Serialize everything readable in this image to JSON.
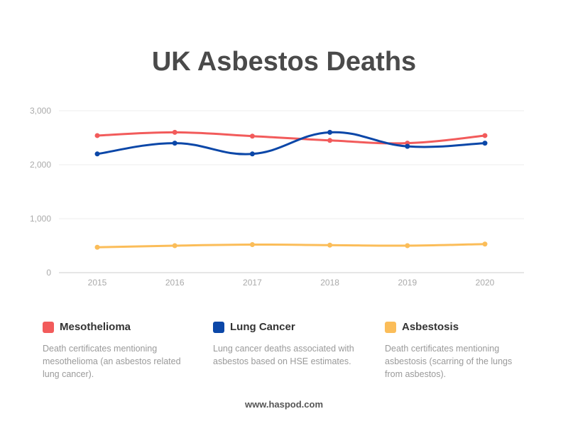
{
  "title": "UK Asbestos Deaths",
  "footer": "www.haspod.com",
  "legend": [
    {
      "name": "Mesothelioma",
      "color": "#f25b5b",
      "description": "Death certificates mentioning mesothelioma (an asbestos related lung cancer)."
    },
    {
      "name": "Lung Cancer",
      "color": "#0b47a8",
      "description": "Lung cancer deaths associated with asbestos based on HSE estimates."
    },
    {
      "name": "Asbestosis",
      "color": "#fbbd59",
      "description": "Death certificates mentioning asbestosis (scarring of the lungs from asbestos)."
    }
  ],
  "chart_data": {
    "type": "line",
    "title": "UK Asbestos Deaths",
    "x": [
      "2015",
      "2016",
      "2017",
      "2018",
      "2019",
      "2020"
    ],
    "y_ticks": [
      "0",
      "1,000",
      "2,000",
      "3,000"
    ],
    "ylim": [
      0,
      3000
    ],
    "grid": true,
    "legend_position": "bottom",
    "series": [
      {
        "name": "Mesothelioma",
        "color": "#f25b5b",
        "values": [
          2540,
          2600,
          2530,
          2450,
          2400,
          2540
        ]
      },
      {
        "name": "Lung Cancer",
        "color": "#0b47a8",
        "values": [
          2200,
          2400,
          2200,
          2600,
          2340,
          2400
        ]
      },
      {
        "name": "Asbestosis",
        "color": "#fbbd59",
        "values": [
          470,
          500,
          520,
          510,
          500,
          530
        ]
      }
    ]
  }
}
